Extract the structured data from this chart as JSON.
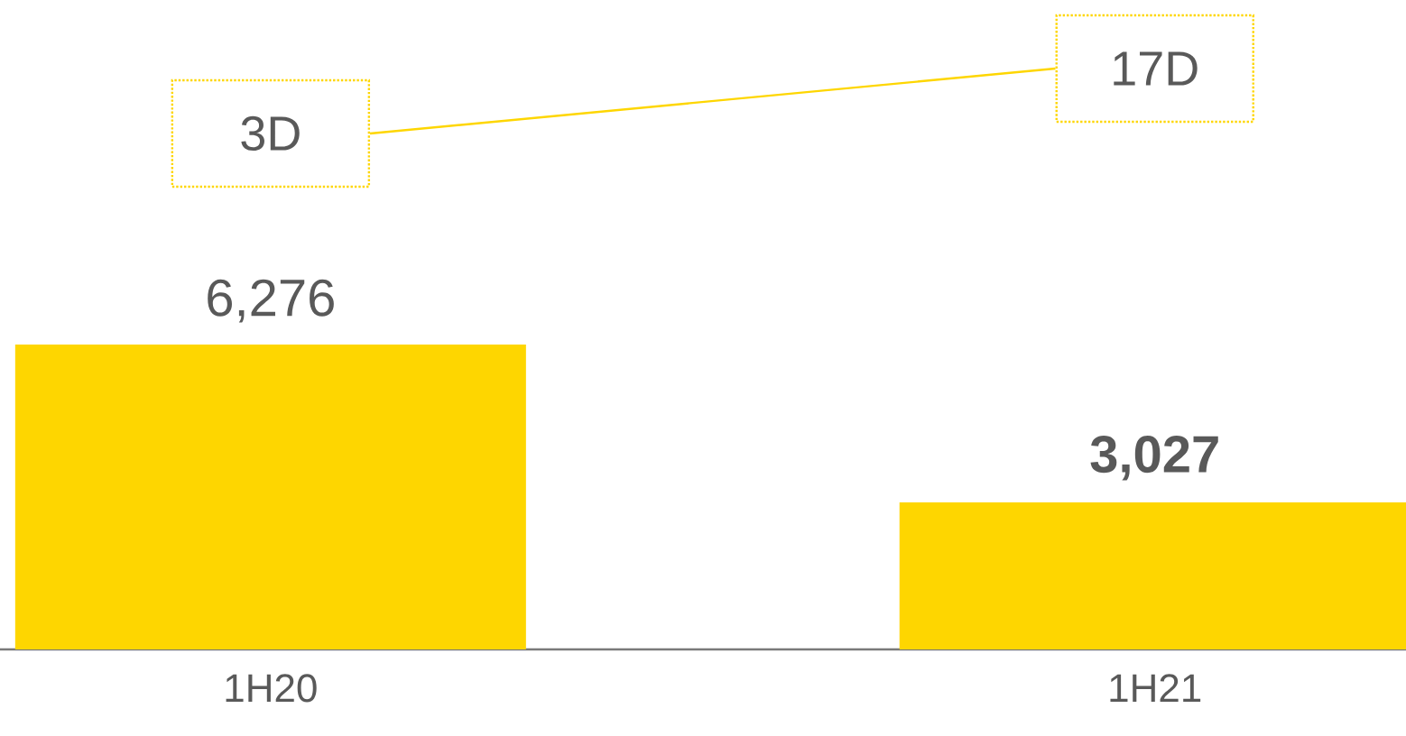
{
  "chart_data": {
    "type": "bar",
    "categories": [
      "1H20",
      "1H21"
    ],
    "values": [
      6276,
      3027
    ],
    "value_labels": [
      "6,276",
      "**3,027**"
    ],
    "color": "#fed600",
    "annotations": [
      "3D",
      "17D"
    ]
  }
}
